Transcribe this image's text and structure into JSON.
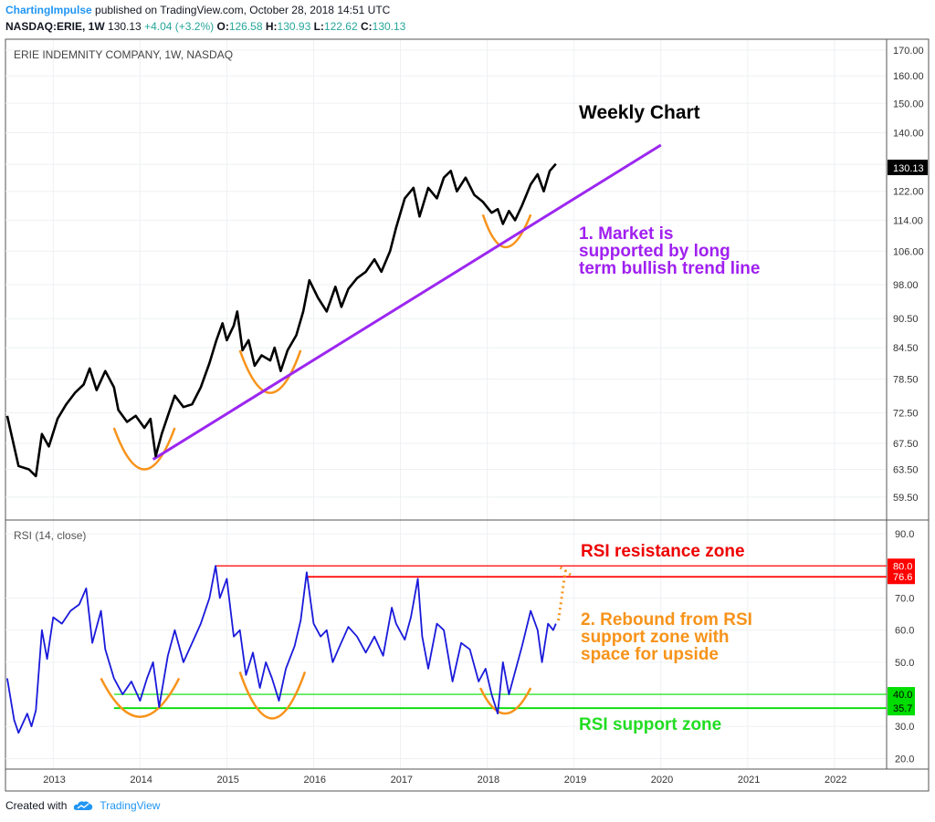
{
  "header": {
    "author": "ChartingImpulse",
    "published_text": "published on TradingView.com, October 28, 2018 14:51 UTC",
    "symbol": "NASDAQ:ERIE, 1W",
    "last": "130.13",
    "change": "+4.04 (+3.2%)",
    "o_label": "O:",
    "o": "126.58",
    "h_label": "H:",
    "h": "130.93",
    "l_label": "L:",
    "l": "122.62",
    "c_label": "C:",
    "c": "130.13"
  },
  "footer": {
    "created_with": "Created with",
    "brand": "TradingView"
  },
  "colors": {
    "price_line": "#000000",
    "trend_line": "#9c27f0",
    "arc": "#f7931a",
    "rsi_line": "#1a1adb",
    "resistance": "#ff0000",
    "support": "#00dd00",
    "annotation_purple": "#a020f0",
    "annotation_orange": "#f7931a",
    "annotation_red": "#ee0000",
    "annotation_green": "#22dd22"
  },
  "chart_data": [
    {
      "type": "line",
      "title": "ERIE INDEMNITY COMPANY, 1W, NASDAQ",
      "y_scale": "log",
      "ylim": [
        56.5,
        174
      ],
      "x_range": [
        2012.45,
        2022.6
      ],
      "x_ticks": [
        "2013",
        "2014",
        "2015",
        "2016",
        "2017",
        "2018",
        "2019",
        "2020",
        "2021",
        "2022"
      ],
      "y_ticks": [
        "170.00",
        "160.00",
        "150.00",
        "140.00",
        "130.00",
        "122.00",
        "114.00",
        "106.00",
        "98.00",
        "90.50",
        "84.50",
        "78.50",
        "72.50",
        "67.50",
        "63.50",
        "59.50"
      ],
      "last_value_label": "130.13",
      "series": [
        {
          "points": [
            [
              2012.47,
              72.0
            ],
            [
              2012.6,
              64.0
            ],
            [
              2012.72,
              63.5
            ],
            [
              2012.8,
              62.5
            ],
            [
              2012.87,
              69.0
            ],
            [
              2012.95,
              67.0
            ],
            [
              2013.05,
              71.5
            ],
            [
              2013.15,
              74.0
            ],
            [
              2013.25,
              76.0
            ],
            [
              2013.35,
              77.5
            ],
            [
              2013.42,
              80.5
            ],
            [
              2013.5,
              76.5
            ],
            [
              2013.6,
              80.0
            ],
            [
              2013.7,
              77.0
            ],
            [
              2013.75,
              73.0
            ],
            [
              2013.85,
              71.0
            ],
            [
              2013.95,
              72.0
            ],
            [
              2014.05,
              70.0
            ],
            [
              2014.12,
              71.5
            ],
            [
              2014.18,
              65.5
            ],
            [
              2014.25,
              69.0
            ],
            [
              2014.32,
              72.0
            ],
            [
              2014.4,
              75.5
            ],
            [
              2014.5,
              73.5
            ],
            [
              2014.6,
              74.0
            ],
            [
              2014.7,
              77.0
            ],
            [
              2014.8,
              81.5
            ],
            [
              2014.88,
              86.0
            ],
            [
              2014.95,
              89.5
            ],
            [
              2015.0,
              86.0
            ],
            [
              2015.08,
              89.0
            ],
            [
              2015.12,
              92.0
            ],
            [
              2015.18,
              84.0
            ],
            [
              2015.25,
              86.0
            ],
            [
              2015.32,
              81.0
            ],
            [
              2015.4,
              83.0
            ],
            [
              2015.5,
              82.0
            ],
            [
              2015.55,
              84.5
            ],
            [
              2015.62,
              80.0
            ],
            [
              2015.7,
              84.0
            ],
            [
              2015.8,
              87.0
            ],
            [
              2015.88,
              92.0
            ],
            [
              2015.95,
              99.0
            ],
            [
              2016.05,
              95.0
            ],
            [
              2016.15,
              92.0
            ],
            [
              2016.25,
              97.5
            ],
            [
              2016.32,
              93.0
            ],
            [
              2016.4,
              97.0
            ],
            [
              2016.5,
              99.5
            ],
            [
              2016.6,
              101.0
            ],
            [
              2016.7,
              104.0
            ],
            [
              2016.78,
              101.0
            ],
            [
              2016.88,
              106.0
            ],
            [
              2016.95,
              112.0
            ],
            [
              2017.05,
              120.0
            ],
            [
              2017.15,
              123.0
            ],
            [
              2017.22,
              115.0
            ],
            [
              2017.32,
              123.0
            ],
            [
              2017.42,
              120.0
            ],
            [
              2017.5,
              126.0
            ],
            [
              2017.58,
              128.0
            ],
            [
              2017.65,
              122.0
            ],
            [
              2017.75,
              126.0
            ],
            [
              2017.85,
              121.0
            ],
            [
              2017.95,
              119.0
            ],
            [
              2018.05,
              116.0
            ],
            [
              2018.12,
              117.0
            ],
            [
              2018.18,
              113.0
            ],
            [
              2018.25,
              116.5
            ],
            [
              2018.32,
              114.0
            ],
            [
              2018.4,
              118.0
            ],
            [
              2018.5,
              124.0
            ],
            [
              2018.58,
              127.0
            ],
            [
              2018.65,
              122.0
            ],
            [
              2018.72,
              128.0
            ],
            [
              2018.79,
              130.13
            ]
          ]
        }
      ],
      "annotations": [
        "Weekly Chart",
        "1. Market is",
        "supported by long",
        "term bullish trend line"
      ]
    },
    {
      "type": "line",
      "title": "RSI (14, close)",
      "ylim": [
        17,
        94
      ],
      "x_range": [
        2012.45,
        2022.6
      ],
      "y_ticks": [
        "90.0",
        "70.0",
        "60.0",
        "50.0",
        "30.0",
        "20.0"
      ],
      "levels": [
        {
          "value": 80.0,
          "label": "80.0",
          "kind": "resistance"
        },
        {
          "value": 76.6,
          "label": "76.6",
          "kind": "resistance"
        },
        {
          "value": 40.0,
          "label": "40.0",
          "kind": "support"
        },
        {
          "value": 35.7,
          "label": "35.7",
          "kind": "support"
        }
      ],
      "series": [
        {
          "points": [
            [
              2012.47,
              45.0
            ],
            [
              2012.55,
              32.0
            ],
            [
              2012.6,
              28.0
            ],
            [
              2012.7,
              34.0
            ],
            [
              2012.75,
              30.0
            ],
            [
              2012.8,
              35.0
            ],
            [
              2012.87,
              60.0
            ],
            [
              2012.93,
              51.0
            ],
            [
              2013.0,
              64.0
            ],
            [
              2013.1,
              62.0
            ],
            [
              2013.2,
              66.0
            ],
            [
              2013.3,
              68.0
            ],
            [
              2013.38,
              73.0
            ],
            [
              2013.45,
              56.0
            ],
            [
              2013.55,
              66.0
            ],
            [
              2013.6,
              54.0
            ],
            [
              2013.7,
              45.0
            ],
            [
              2013.8,
              40.0
            ],
            [
              2013.9,
              44.0
            ],
            [
              2014.0,
              38.0
            ],
            [
              2014.08,
              45.0
            ],
            [
              2014.15,
              50.0
            ],
            [
              2014.22,
              36.0
            ],
            [
              2014.32,
              52.0
            ],
            [
              2014.4,
              60.0
            ],
            [
              2014.5,
              50.0
            ],
            [
              2014.6,
              56.0
            ],
            [
              2014.7,
              62.0
            ],
            [
              2014.8,
              70.0
            ],
            [
              2014.87,
              80.0
            ],
            [
              2014.92,
              70.0
            ],
            [
              2015.0,
              76.0
            ],
            [
              2015.08,
              58.0
            ],
            [
              2015.15,
              60.0
            ],
            [
              2015.22,
              46.0
            ],
            [
              2015.3,
              53.0
            ],
            [
              2015.38,
              42.0
            ],
            [
              2015.45,
              50.0
            ],
            [
              2015.52,
              45.0
            ],
            [
              2015.6,
              38.0
            ],
            [
              2015.68,
              48.0
            ],
            [
              2015.78,
              55.0
            ],
            [
              2015.85,
              63.0
            ],
            [
              2015.92,
              78.0
            ],
            [
              2016.0,
              62.0
            ],
            [
              2016.08,
              58.0
            ],
            [
              2016.15,
              60.0
            ],
            [
              2016.22,
              50.0
            ],
            [
              2016.3,
              55.0
            ],
            [
              2016.4,
              61.0
            ],
            [
              2016.5,
              58.0
            ],
            [
              2016.6,
              53.0
            ],
            [
              2016.7,
              58.0
            ],
            [
              2016.8,
              52.0
            ],
            [
              2016.9,
              67.0
            ],
            [
              2016.95,
              62.0
            ],
            [
              2017.05,
              57.0
            ],
            [
              2017.12,
              64.0
            ],
            [
              2017.2,
              76.0
            ],
            [
              2017.25,
              58.0
            ],
            [
              2017.32,
              48.0
            ],
            [
              2017.42,
              62.0
            ],
            [
              2017.5,
              60.0
            ],
            [
              2017.6,
              44.0
            ],
            [
              2017.7,
              56.0
            ],
            [
              2017.8,
              54.0
            ],
            [
              2017.9,
              44.0
            ],
            [
              2017.98,
              48.0
            ],
            [
              2018.05,
              40.0
            ],
            [
              2018.12,
              34.0
            ],
            [
              2018.18,
              50.0
            ],
            [
              2018.25,
              40.0
            ],
            [
              2018.32,
              47.0
            ],
            [
              2018.4,
              55.0
            ],
            [
              2018.5,
              66.0
            ],
            [
              2018.58,
              60.0
            ],
            [
              2018.63,
              50.0
            ],
            [
              2018.7,
              62.0
            ],
            [
              2018.76,
              60.0
            ],
            [
              2018.79,
              62.0
            ]
          ]
        }
      ],
      "annotations": [
        "RSI resistance zone",
        "2. Rebound from RSI",
        "support zone with",
        "space for upside",
        "RSI support zone"
      ]
    }
  ]
}
